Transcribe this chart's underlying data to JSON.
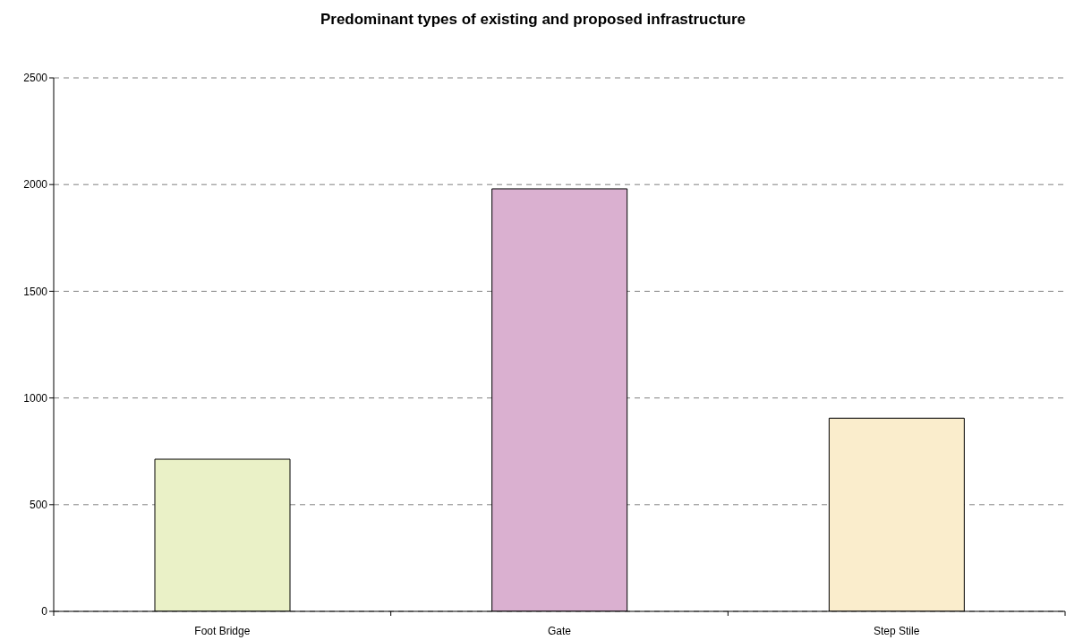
{
  "chart_data": {
    "type": "bar",
    "title": "Predominant types of existing and proposed infrastructure",
    "categories": [
      "Foot Bridge",
      "Gate",
      "Step Stile"
    ],
    "values": [
      713,
      1980,
      905
    ],
    "colors": [
      "#eaf1c7",
      "#dab0d0",
      "#faedcc"
    ],
    "ylim": [
      0,
      2500
    ],
    "yticks": [
      0,
      500,
      1000,
      1500,
      2000,
      2500
    ],
    "grid": "y"
  }
}
